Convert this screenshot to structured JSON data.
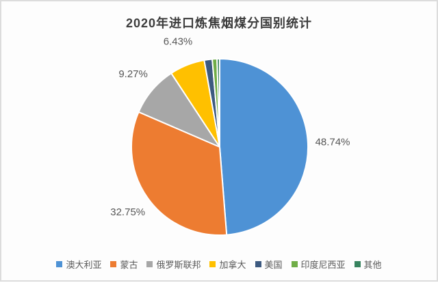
{
  "chart_data": {
    "type": "pie",
    "title": "2020年进口炼焦烟煤分国别统计",
    "start_angle_deg": 0,
    "direction": "clockwise",
    "legend_position": "bottom",
    "label_color": "#565656",
    "slices": [
      {
        "label": "澳大利亚",
        "value": 48.74,
        "display": "48.74%",
        "color": "#4E92D5",
        "labeled": true
      },
      {
        "label": "蒙古",
        "value": 32.75,
        "display": "32.75%",
        "color": "#ED7C31",
        "labeled": true
      },
      {
        "label": "俄罗斯联邦",
        "value": 9.27,
        "display": "9.27%",
        "color": "#A7A7A7",
        "labeled": true
      },
      {
        "label": "加拿大",
        "value": 6.43,
        "display": "6.43%",
        "color": "#FFC000",
        "labeled": true
      },
      {
        "label": "美国",
        "value": 1.46,
        "display": "",
        "color": "#3D5A80",
        "labeled": false,
        "value_estimated": true
      },
      {
        "label": "印度尼西亚",
        "value": 0.87,
        "display": "",
        "color": "#70AD47",
        "labeled": false,
        "value_estimated": true
      },
      {
        "label": "其他",
        "value": 0.48,
        "display": "",
        "color": "#37835F",
        "labeled": false,
        "value_estimated": true
      }
    ]
  }
}
